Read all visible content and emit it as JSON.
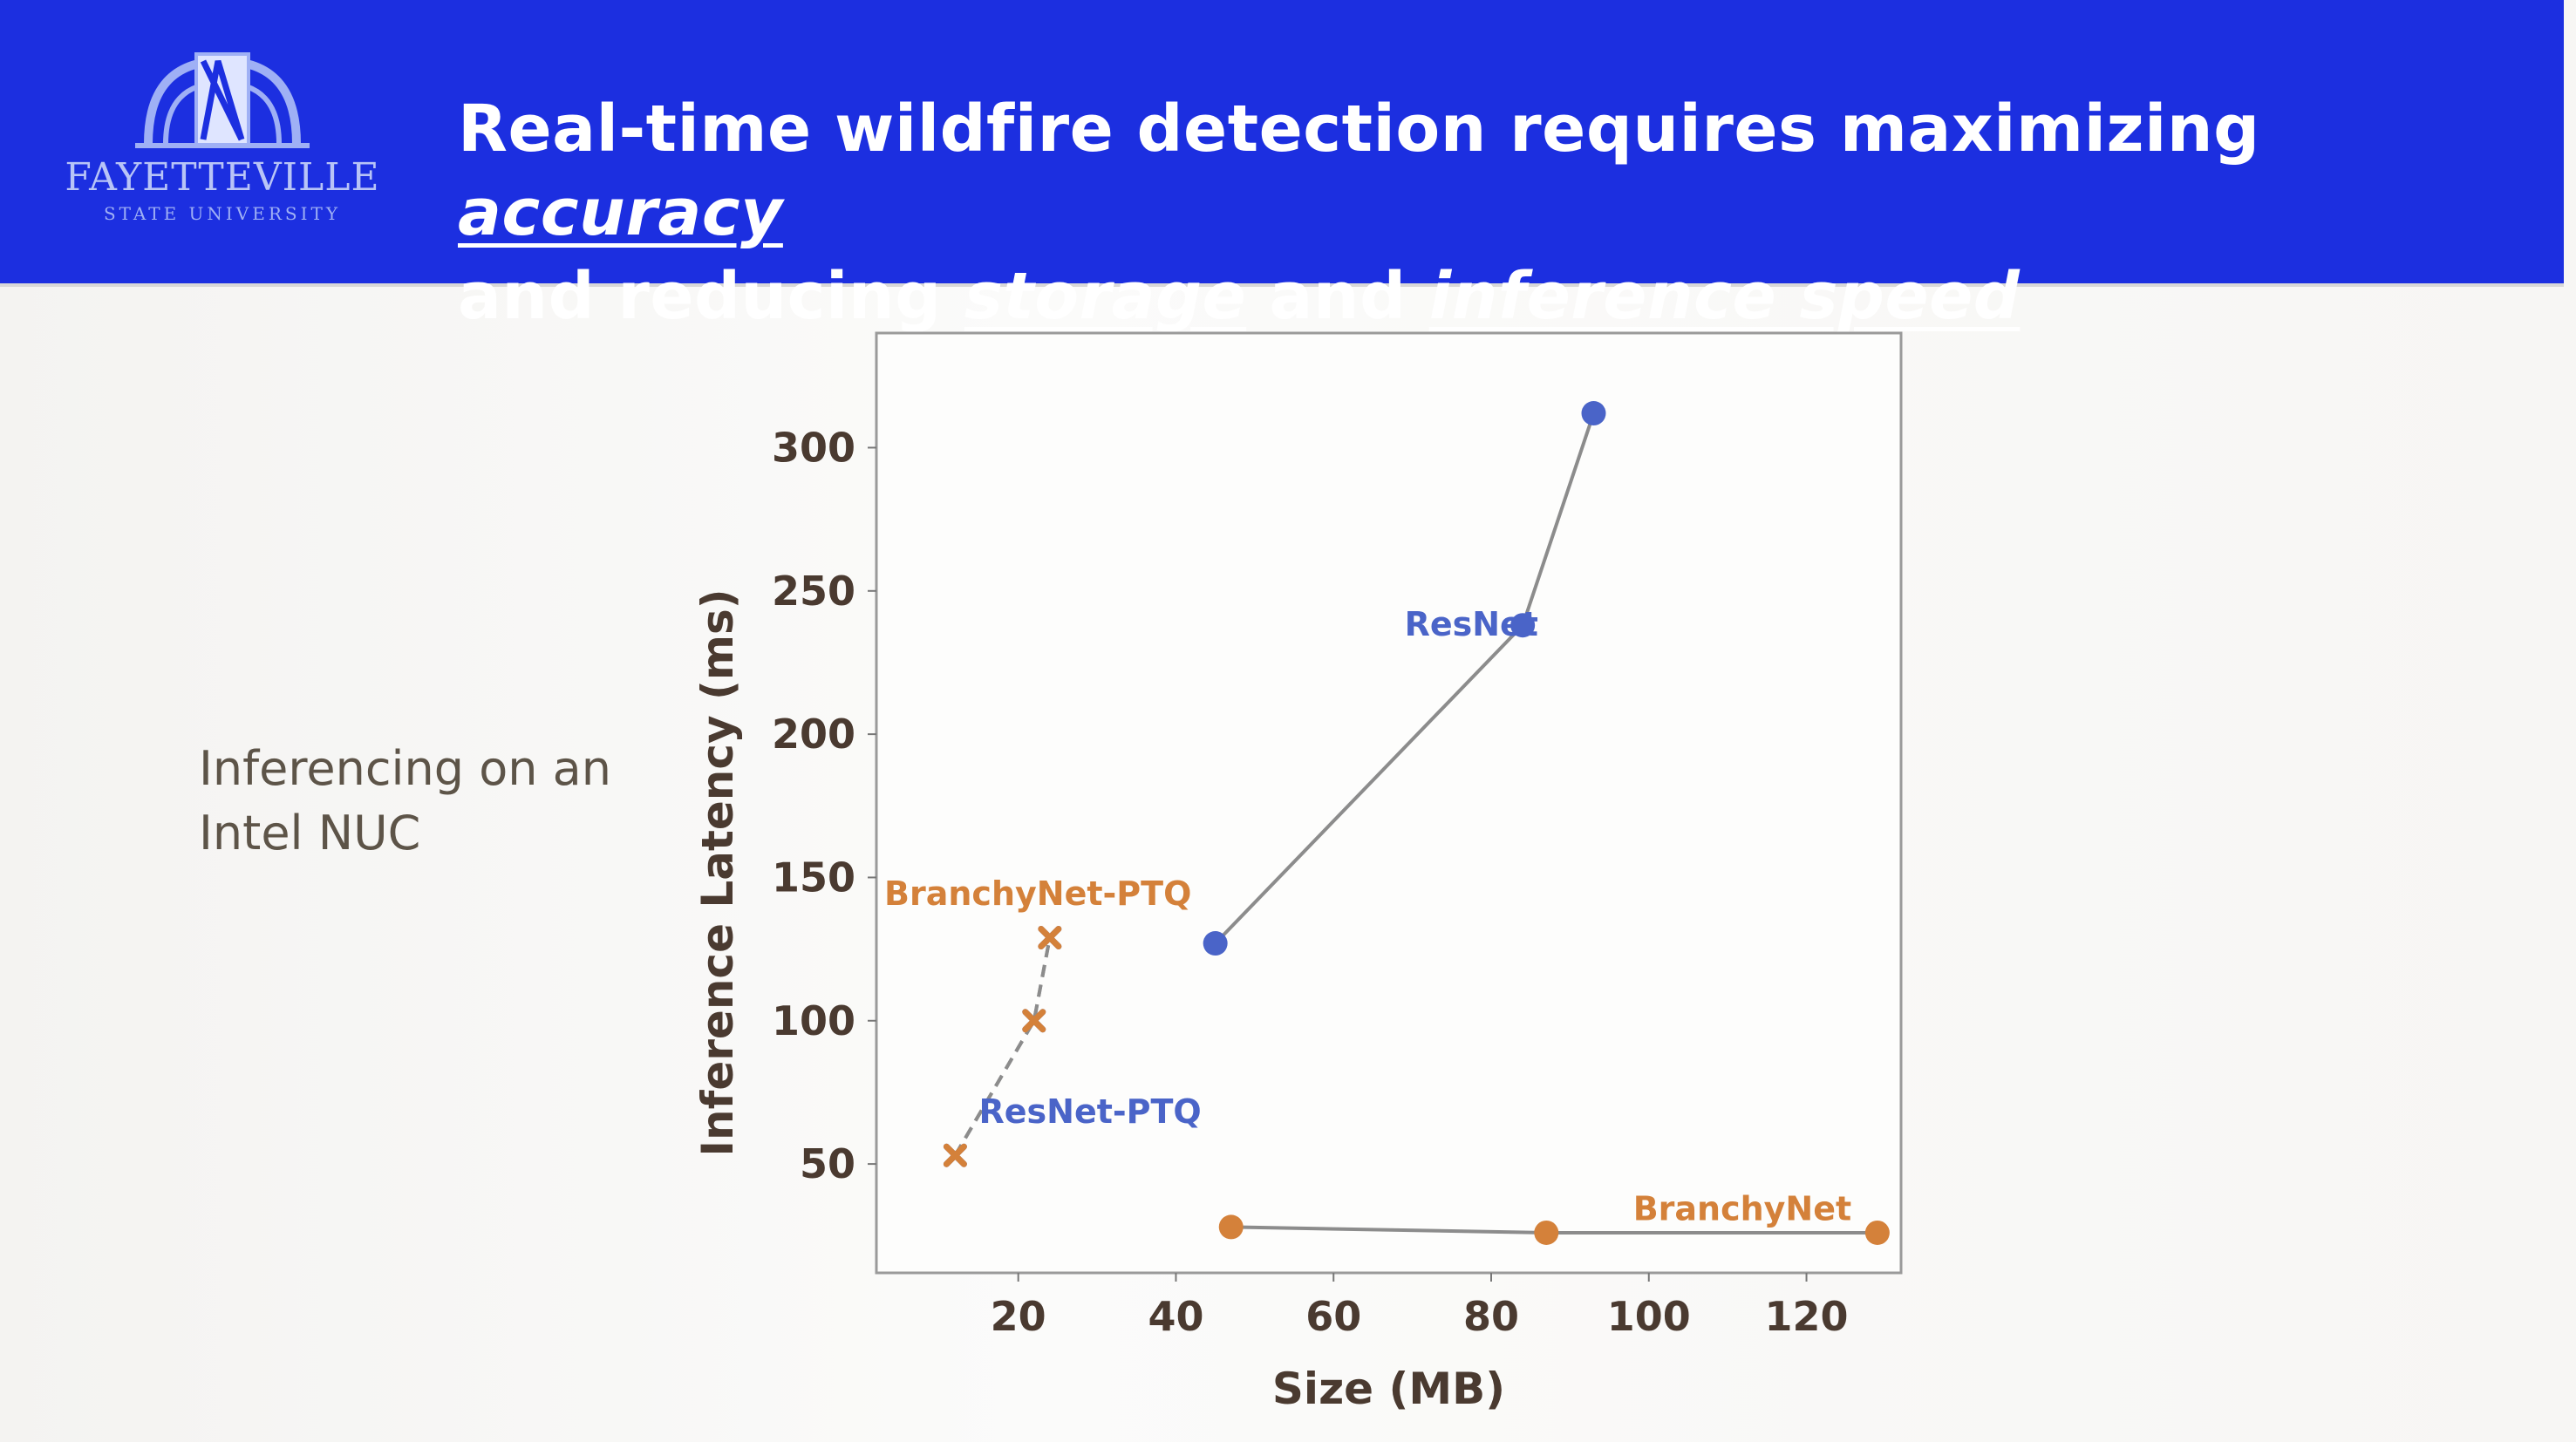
{
  "slide": {
    "title_prefix": "Real-time wildfire detection requires maximizing",
    "title_kw1": "accuracy",
    "title_mid": "and reducing",
    "title_kw2": "storage",
    "title_and": "and",
    "title_kw3": "inference speed",
    "side_note_line1": "Inferencing on an",
    "side_note_line2": "Intel NUC",
    "logo_text": "FAYETTEVILLE",
    "logo_subtext": "STATE UNIVERSITY",
    "banner_color": "#1c2fe0"
  },
  "chart_data": {
    "type": "scatter",
    "xlabel": "Size (MB)",
    "ylabel": "Inference Latency (ms)",
    "xlim": [
      2,
      132
    ],
    "ylim": [
      12,
      340
    ],
    "xticks": [
      20,
      40,
      60,
      80,
      100,
      120
    ],
    "yticks": [
      50,
      100,
      150,
      200,
      250,
      300
    ],
    "grid": false,
    "series": [
      {
        "name": "ResNet",
        "color": "#4a64c8",
        "marker": "circle",
        "dash": false,
        "x": [
          45,
          84,
          93
        ],
        "y": [
          127,
          238,
          312
        ]
      },
      {
        "name": "ResNet-PTQ",
        "color": "#4a64c8",
        "marker": "x",
        "dash": true,
        "x": [
          12,
          22,
          24
        ],
        "y": [
          53,
          100,
          129
        ]
      },
      {
        "name": "BranchyNet-PTQ",
        "color": "#d4813a",
        "marker": "x",
        "dash": true,
        "x": [
          12,
          22,
          24
        ],
        "y": [
          53,
          100,
          129
        ]
      },
      {
        "name": "BranchyNet",
        "color": "#d4813a",
        "marker": "circle",
        "dash": false,
        "x": [
          47,
          87,
          129
        ],
        "y": [
          28,
          26,
          26
        ]
      }
    ],
    "annotations": [
      {
        "text": "ResNet",
        "x": 69,
        "y": 238,
        "color": "#4a64c8"
      },
      {
        "text": "BranchyNet-PTQ",
        "x": 3,
        "y": 144,
        "color": "#d4813a"
      },
      {
        "text": "ResNet-PTQ",
        "x": 15,
        "y": 68,
        "color": "#4a64c8"
      },
      {
        "text": "BranchyNet",
        "x": 98,
        "y": 34,
        "color": "#d4813a"
      }
    ]
  }
}
